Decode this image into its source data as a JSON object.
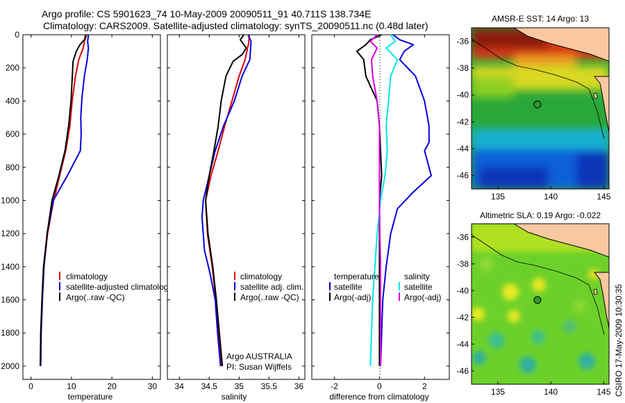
{
  "header": {
    "title_line1": "Argo profile: CS 5901623_74 10-May-2009 20090511_91 40.711S 138.734E",
    "title_line2": "Climatology: CARS2009. Satellite-adjusted climatology: synTS_20090511.nc (0.48d later)"
  },
  "credit": "CSIRO 17-May-2009 10:30:35",
  "colors": {
    "climatology": "#dd0000",
    "satellite": "#0000dd",
    "argo": "#000000",
    "sat_salinity": "#00e5e5",
    "argo_salinity": "#dd00dd",
    "land": "#f9c8a0"
  },
  "chart_data": [
    {
      "type": "line",
      "id": "temperature",
      "xlabel": "temperature",
      "ylabel": "",
      "xlim": [
        -2,
        32
      ],
      "ylim": [
        0,
        2080
      ],
      "y_reversed": true,
      "xticks": [
        0,
        10,
        20,
        30
      ],
      "yticks": [
        0,
        200,
        400,
        600,
        800,
        1000,
        1200,
        1400,
        1600,
        1800,
        2000
      ],
      "legend": [
        "climatology",
        "satellite-adjusted climatology",
        "Argo(..raw -QC)"
      ],
      "series": [
        {
          "name": "climatology",
          "color": "#dd0000",
          "points": [
            [
              13.4,
              0
            ],
            [
              13.3,
              30
            ],
            [
              12.9,
              80
            ],
            [
              11.8,
              150
            ],
            [
              11.0,
              250
            ],
            [
              10.2,
              400
            ],
            [
              9.6,
              550
            ],
            [
              8.6,
              700
            ],
            [
              7.1,
              850
            ],
            [
              5.6,
              1000
            ],
            [
              4.1,
              1200
            ],
            [
              3.2,
              1400
            ],
            [
              2.8,
              1600
            ],
            [
              2.5,
              1800
            ],
            [
              2.4,
              2000
            ]
          ]
        },
        {
          "name": "satellite-adjusted climatology",
          "color": "#0000dd",
          "points": [
            [
              14.2,
              0
            ],
            [
              14.0,
              40
            ],
            [
              14.2,
              80
            ],
            [
              13.9,
              150
            ],
            [
              13.2,
              250
            ],
            [
              12.6,
              380
            ],
            [
              12.3,
              500
            ],
            [
              12.4,
              600
            ],
            [
              12.2,
              700
            ],
            [
              9.0,
              850
            ],
            [
              5.5,
              1000
            ],
            [
              4.0,
              1200
            ],
            [
              3.2,
              1400
            ],
            [
              2.8,
              1600
            ],
            [
              2.5,
              1800
            ],
            [
              2.4,
              2000
            ]
          ]
        },
        {
          "name": "Argo(..raw -QC)",
          "color": "#000000",
          "points": [
            [
              13.7,
              0
            ],
            [
              13.4,
              25
            ],
            [
              12.1,
              60
            ],
            [
              11.2,
              100
            ],
            [
              10.4,
              160
            ],
            [
              10.2,
              260
            ],
            [
              9.9,
              400
            ],
            [
              9.3,
              550
            ],
            [
              8.4,
              700
            ],
            [
              6.9,
              850
            ],
            [
              5.2,
              1000
            ],
            [
              4.0,
              1200
            ],
            [
              3.1,
              1400
            ],
            [
              2.7,
              1600
            ],
            [
              2.4,
              1800
            ],
            [
              2.3,
              2000
            ]
          ]
        }
      ]
    },
    {
      "type": "line",
      "id": "salinity",
      "xlabel": "salinity",
      "ylabel": "",
      "xlim": [
        33.8,
        36.1
      ],
      "ylim": [
        0,
        2080
      ],
      "y_reversed": true,
      "xticks": [
        34,
        34.5,
        35,
        35.5,
        36
      ],
      "legend": [
        "climatology",
        "satellite adj. clim.",
        "Argo(..raw -QC)"
      ],
      "annotation": [
        "Argo AUSTRALIA",
        "PI: Susan Wijffels"
      ],
      "series": [
        {
          "name": "climatology",
          "color": "#dd0000",
          "points": [
            [
              35.17,
              0
            ],
            [
              35.16,
              50
            ],
            [
              35.1,
              150
            ],
            [
              35.0,
              250
            ],
            [
              34.88,
              400
            ],
            [
              34.76,
              550
            ],
            [
              34.65,
              700
            ],
            [
              34.53,
              850
            ],
            [
              34.44,
              1000
            ],
            [
              34.47,
              1200
            ],
            [
              34.55,
              1400
            ],
            [
              34.61,
              1600
            ],
            [
              34.66,
              1800
            ],
            [
              34.7,
              2000
            ]
          ]
        },
        {
          "name": "satellite adj. clim.",
          "color": "#0000dd",
          "points": [
            [
              35.15,
              0
            ],
            [
              35.2,
              40
            ],
            [
              35.18,
              150
            ],
            [
              35.05,
              250
            ],
            [
              34.92,
              400
            ],
            [
              34.74,
              550
            ],
            [
              34.6,
              700
            ],
            [
              34.5,
              850
            ],
            [
              34.4,
              1000
            ],
            [
              34.38,
              1100
            ],
            [
              34.42,
              1300
            ],
            [
              34.52,
              1450
            ],
            [
              34.6,
              1600
            ],
            [
              34.64,
              1800
            ],
            [
              34.69,
              2000
            ]
          ]
        },
        {
          "name": "Argo(..raw -QC)",
          "color": "#000000",
          "points": [
            [
              35.08,
              0
            ],
            [
              35.02,
              30
            ],
            [
              35.12,
              80
            ],
            [
              35.05,
              120
            ],
            [
              34.9,
              160
            ],
            [
              34.78,
              250
            ],
            [
              34.7,
              400
            ],
            [
              34.65,
              550
            ],
            [
              34.58,
              700
            ],
            [
              34.5,
              850
            ],
            [
              34.44,
              1000
            ],
            [
              34.48,
              1200
            ],
            [
              34.56,
              1400
            ],
            [
              34.62,
              1600
            ],
            [
              34.67,
              1800
            ],
            [
              34.72,
              2000
            ]
          ]
        }
      ]
    },
    {
      "type": "line",
      "id": "difference",
      "xlabel": "difference from climatology",
      "ylabel": "",
      "xlim": [
        -3,
        3.1
      ],
      "ylim": [
        0,
        2080
      ],
      "y_reversed": true,
      "xticks": [
        -2,
        0,
        2
      ],
      "legend_groups": [
        {
          "title": "temperature",
          "items": [
            "satellite",
            "Argo(-adj)"
          ]
        },
        {
          "title": "salinity",
          "items": [
            "satellite",
            "Argo(-adj)"
          ]
        }
      ],
      "series": [
        {
          "name": "temperature satellite",
          "color": "#0000dd",
          "points": [
            [
              0.6,
              0
            ],
            [
              0.9,
              30
            ],
            [
              1.5,
              60
            ],
            [
              1.1,
              100
            ],
            [
              0.9,
              150
            ],
            [
              1.6,
              250
            ],
            [
              2.0,
              400
            ],
            [
              2.2,
              550
            ],
            [
              2.2,
              650
            ],
            [
              2.0,
              700
            ],
            [
              2.2,
              800
            ],
            [
              2.3,
              850
            ],
            [
              1.5,
              950
            ],
            [
              0.8,
              1050
            ],
            [
              0.5,
              1200
            ],
            [
              0.3,
              1400
            ],
            [
              0.15,
              1600
            ],
            [
              0.1,
              1800
            ],
            [
              0.05,
              2000
            ]
          ]
        },
        {
          "name": "temperature Argo(-adj)",
          "color": "#000000",
          "points": [
            [
              0.1,
              0
            ],
            [
              -0.4,
              30
            ],
            [
              -0.6,
              60
            ],
            [
              -1.0,
              100
            ],
            [
              -0.7,
              150
            ],
            [
              -0.6,
              250
            ],
            [
              -0.1,
              400
            ],
            [
              0.0,
              550
            ],
            [
              0.05,
              700
            ],
            [
              0.1,
              850
            ],
            [
              0.0,
              1000
            ],
            [
              0.0,
              1200
            ],
            [
              0.0,
              1400
            ],
            [
              0.0,
              1600
            ],
            [
              0.0,
              1800
            ],
            [
              0.0,
              2000
            ]
          ]
        },
        {
          "name": "salinity satellite",
          "color": "#00e5e5",
          "points": [
            [
              0.5,
              0
            ],
            [
              0.7,
              40
            ],
            [
              0.3,
              80
            ],
            [
              0.8,
              150
            ],
            [
              0.5,
              250
            ],
            [
              0.4,
              400
            ],
            [
              0.3,
              550
            ],
            [
              0.35,
              700
            ],
            [
              0.25,
              850
            ],
            [
              0.05,
              1000
            ],
            [
              -0.1,
              1200
            ],
            [
              -0.2,
              1400
            ],
            [
              -0.3,
              1600
            ],
            [
              -0.35,
              1800
            ],
            [
              -0.4,
              2000
            ]
          ]
        },
        {
          "name": "salinity Argo(-adj)",
          "color": "#dd00dd",
          "points": [
            [
              -0.1,
              0
            ],
            [
              -0.4,
              40
            ],
            [
              -0.1,
              80
            ],
            [
              -0.35,
              150
            ],
            [
              -0.3,
              250
            ],
            [
              -0.1,
              400
            ],
            [
              0.0,
              550
            ],
            [
              0.0,
              700
            ],
            [
              0.0,
              1000
            ],
            [
              0.02,
              1200
            ],
            [
              0.05,
              1400
            ],
            [
              0.05,
              1600
            ],
            [
              0.05,
              1800
            ],
            [
              0.05,
              2000
            ]
          ]
        }
      ]
    },
    {
      "type": "heatmap",
      "id": "sst_map",
      "title": "AMSR-E SST: 14 Argo: 13",
      "xlim": [
        132.5,
        145.5
      ],
      "ylim": [
        -47,
        -35
      ],
      "xticks": [
        135,
        140,
        145
      ],
      "yticks": [
        -36,
        -38,
        -40,
        -42,
        -44,
        -46
      ],
      "argo_position": [
        138.734,
        -40.711
      ]
    },
    {
      "type": "heatmap",
      "id": "sla_map",
      "title": "Altimetric SLA: 0.19 Argo: -0.022",
      "xlim": [
        132.5,
        145.5
      ],
      "ylim": [
        -47,
        -35
      ],
      "xticks": [
        135,
        140,
        145
      ],
      "yticks": [
        -36,
        -38,
        -40,
        -42,
        -44,
        -46
      ],
      "argo_position": [
        138.734,
        -40.711
      ]
    }
  ]
}
